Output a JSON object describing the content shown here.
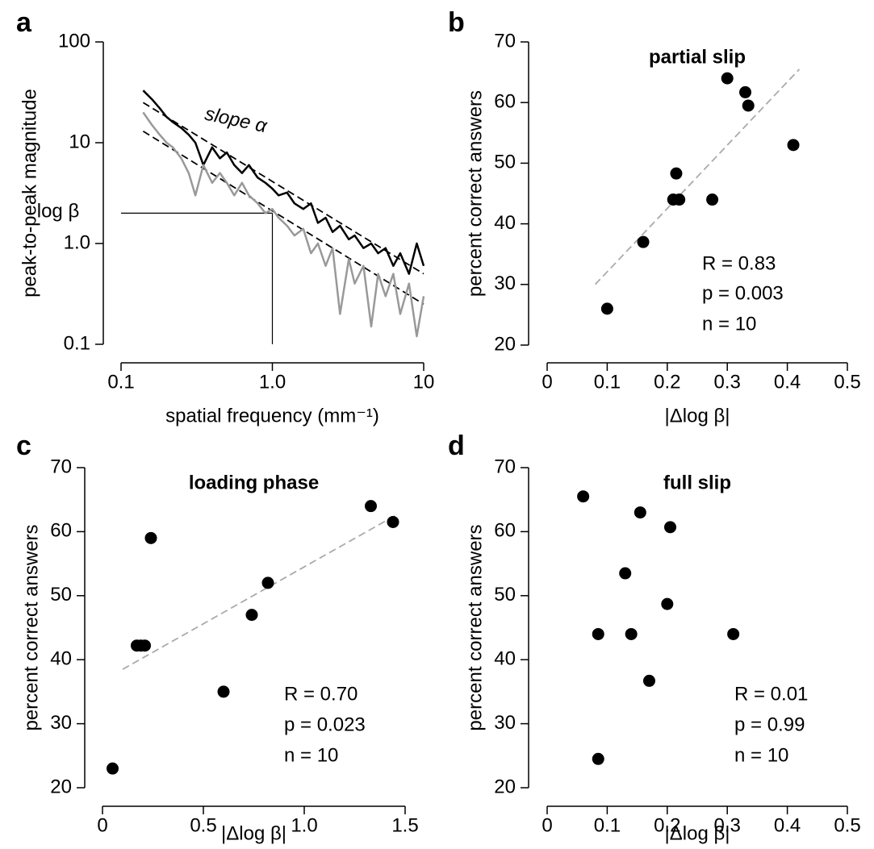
{
  "chart_data": [
    {
      "panel": "a",
      "type": "line",
      "log_x": true,
      "log_y": true,
      "xlabel": "spatial frequency (mm⁻¹)",
      "ylabel": "peak-to-peak magnitude",
      "xlim": [
        0.1,
        10
      ],
      "ylim": [
        0.1,
        100
      ],
      "xticks": [
        0.1,
        {
          "value": 1,
          "label": "1.0"
        },
        10
      ],
      "yticks": [
        0.1,
        {
          "value": 1,
          "label": "1.0"
        },
        10,
        100
      ],
      "x": [
        0.14,
        0.16,
        0.18,
        0.2,
        0.22,
        0.25,
        0.28,
        0.31,
        0.35,
        0.4,
        0.45,
        0.5,
        0.56,
        0.63,
        0.7,
        0.8,
        0.9,
        1.0,
        1.1,
        1.25,
        1.4,
        1.6,
        1.8,
        2.0,
        2.25,
        2.5,
        2.8,
        3.2,
        3.5,
        4.0,
        4.5,
        5.0,
        5.6,
        6.3,
        7.0,
        8.0,
        9.0,
        10
      ],
      "series": [
        {
          "color": "#000000",
          "values": [
            33,
            27,
            22,
            18,
            16,
            14,
            12,
            10,
            6,
            9,
            7,
            8,
            6,
            5,
            6,
            4.5,
            4,
            3.5,
            3,
            3.2,
            2.5,
            2.2,
            2.5,
            1.6,
            1.8,
            1.3,
            1.5,
            1.1,
            1.2,
            0.9,
            1.0,
            0.8,
            0.9,
            0.6,
            0.8,
            0.5,
            1.0,
            0.6
          ]
        },
        {
          "color": "#999999",
          "values": [
            20,
            15,
            12,
            10,
            9,
            7,
            5,
            3,
            6,
            4,
            5,
            4,
            3,
            4,
            3,
            2.5,
            2,
            2.2,
            1.8,
            1.5,
            1.2,
            1.4,
            0.8,
            1.0,
            0.6,
            0.9,
            0.2,
            0.7,
            0.4,
            0.6,
            0.15,
            0.5,
            0.3,
            0.5,
            0.2,
            0.4,
            0.12,
            0.3
          ]
        }
      ],
      "fits": [
        {
          "color": "#000000",
          "x": [
            0.14,
            10
          ],
          "values": [
            25,
            0.5
          ]
        },
        {
          "color": "#000000",
          "x": [
            0.14,
            10
          ],
          "values": [
            13,
            0.25
          ]
        }
      ],
      "beta_marker": {
        "x": 1,
        "y": 2
      },
      "annotations": [
        "slope α",
        "log β"
      ]
    },
    {
      "panel": "b",
      "type": "scatter",
      "title": "partial slip",
      "xlabel": "|Δlog β|",
      "ylabel": "percent correct answers",
      "xlim": [
        0,
        0.5
      ],
      "ylim": [
        20,
        70
      ],
      "xticks": [
        0,
        0.1,
        0.2,
        0.3,
        0.4,
        0.5
      ],
      "yticks": [
        20,
        30,
        40,
        50,
        60,
        70
      ],
      "color": "#000000",
      "x": [
        0.1,
        0.16,
        0.21,
        0.215,
        0.22,
        0.275,
        0.3,
        0.33,
        0.335,
        0.41
      ],
      "values": [
        26,
        37,
        44,
        48.3,
        44,
        44,
        64,
        61.7,
        59.5,
        53
      ],
      "fits": [
        {
          "color": "#aaaaaa",
          "x": [
            0.08,
            0.42
          ],
          "values": [
            30,
            65.5
          ]
        }
      ],
      "annotations": [
        "R = 0.83",
        "p = 0.003",
        "n = 10"
      ]
    },
    {
      "panel": "c",
      "type": "scatter",
      "title": "loading phase",
      "xlabel": "|Δlog β|",
      "ylabel": "percent correct answers",
      "xlim": [
        0,
        1.5
      ],
      "ylim": [
        20,
        70
      ],
      "xticks": [
        0,
        0.5,
        {
          "value": 1,
          "label": "1.0"
        },
        1.5
      ],
      "yticks": [
        20,
        30,
        40,
        50,
        60,
        70
      ],
      "color": "#000000",
      "x": [
        0.05,
        0.17,
        0.19,
        0.21,
        0.24,
        0.6,
        0.74,
        0.82,
        1.33,
        1.44
      ],
      "values": [
        23,
        42.2,
        42.2,
        42.2,
        59,
        35,
        47,
        52,
        64,
        61.5
      ],
      "fits": [
        {
          "color": "#aaaaaa",
          "x": [
            0.1,
            1.45
          ],
          "values": [
            38.5,
            62.5
          ]
        }
      ],
      "annotations": [
        "R = 0.70",
        "p = 0.023",
        "n = 10"
      ]
    },
    {
      "panel": "d",
      "type": "scatter",
      "title": "full slip",
      "xlabel": "|Δlog β|",
      "ylabel": "percent correct answers",
      "xlim": [
        0,
        0.5
      ],
      "ylim": [
        20,
        70
      ],
      "xticks": [
        0,
        0.1,
        0.2,
        0.3,
        0.4,
        0.5
      ],
      "yticks": [
        20,
        30,
        40,
        50,
        60,
        70
      ],
      "color": "#000000",
      "x": [
        0.06,
        0.085,
        0.085,
        0.13,
        0.14,
        0.155,
        0.17,
        0.2,
        0.205,
        0.31
      ],
      "values": [
        65.5,
        44,
        24.5,
        53.5,
        44,
        63,
        36.7,
        48.7,
        60.7,
        44
      ],
      "annotations": [
        "R = 0.01",
        "p = 0.99",
        "n = 10"
      ]
    }
  ]
}
